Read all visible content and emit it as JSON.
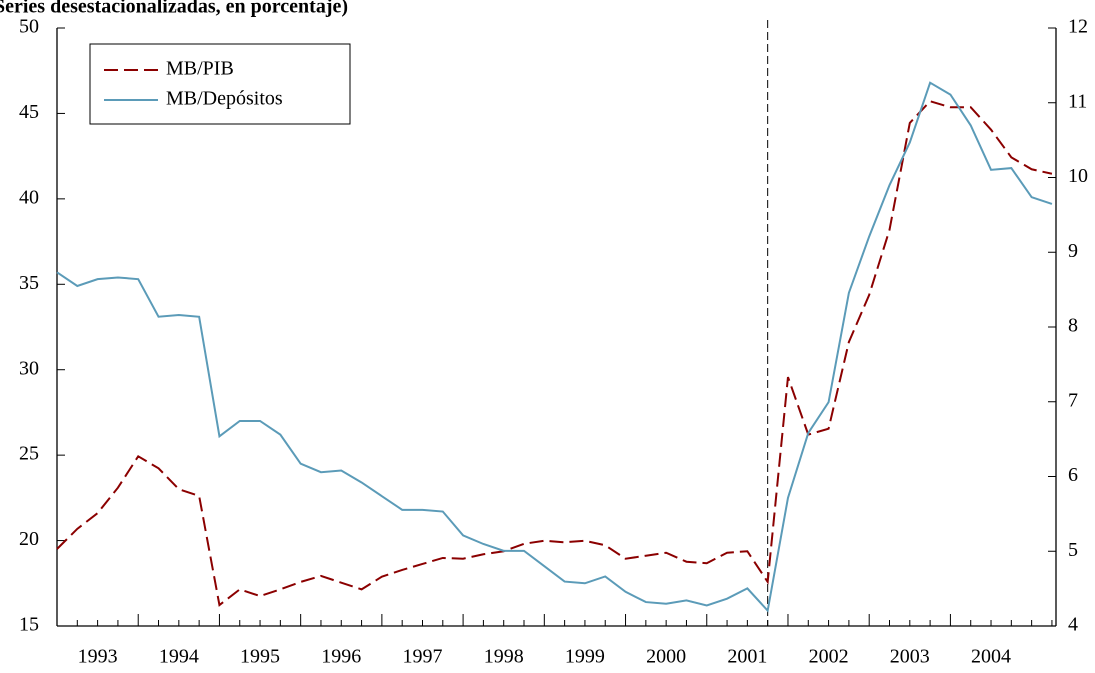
{
  "chart_data": {
    "type": "line",
    "title": "Series desestacionalizadas, en porcentaje)",
    "categories": [
      "1993",
      null,
      null,
      null,
      "1994",
      null,
      null,
      null,
      "1995",
      null,
      null,
      null,
      "1996",
      null,
      null,
      null,
      "1997",
      null,
      null,
      null,
      "1998",
      null,
      null,
      null,
      "1999",
      null,
      null,
      null,
      "2000",
      null,
      null,
      null,
      "2001",
      null,
      null,
      null,
      "2002",
      null,
      null,
      null,
      "2003",
      null,
      null,
      null,
      "2004",
      null,
      null,
      null,
      null,
      null
    ],
    "series": [
      {
        "name": "MB/PIB",
        "color": "#8b0000",
        "dashed": true,
        "axis": "y2",
        "values": [
          5.03,
          5.3,
          5.51,
          5.85,
          6.27,
          6.11,
          5.83,
          5.74,
          4.28,
          4.49,
          4.4,
          4.49,
          4.59,
          4.67,
          4.58,
          4.49,
          4.66,
          4.75,
          4.83,
          4.91,
          4.9,
          4.96,
          5.0,
          5.1,
          5.14,
          5.12,
          5.14,
          5.08,
          4.9,
          4.94,
          4.98,
          4.86,
          4.84,
          4.98,
          5.0,
          4.59,
          7.33,
          6.56,
          6.64,
          7.8,
          8.43,
          9.3,
          10.73,
          11.02,
          10.94,
          10.94,
          10.64,
          10.27,
          10.11,
          10.05
        ]
      },
      {
        "name": "MB/Depósitos",
        "color": "#5b9bb8",
        "dashed": false,
        "axis": "y",
        "values": [
          35.7,
          34.9,
          35.3,
          35.4,
          35.3,
          33.1,
          33.2,
          33.1,
          26.1,
          27.0,
          27.0,
          26.2,
          24.5,
          24.0,
          24.1,
          23.4,
          22.6,
          21.8,
          21.8,
          21.7,
          20.3,
          19.8,
          19.4,
          19.4,
          18.5,
          17.6,
          17.5,
          17.9,
          17.0,
          16.4,
          16.3,
          16.5,
          16.2,
          16.6,
          17.2,
          15.9,
          22.5,
          26.3,
          28.1,
          34.5,
          37.8,
          40.8,
          43.3,
          46.8,
          46.1,
          44.3,
          41.7,
          41.8,
          40.1,
          39.7
        ]
      }
    ],
    "ylim": [
      15,
      50
    ],
    "yticks": [
      15,
      20,
      25,
      30,
      35,
      40,
      45,
      50
    ],
    "y2lim": [
      4,
      12
    ],
    "y2ticks": [
      4,
      5,
      6,
      7,
      8,
      9,
      10,
      11,
      12
    ],
    "legend": "top-left"
  }
}
